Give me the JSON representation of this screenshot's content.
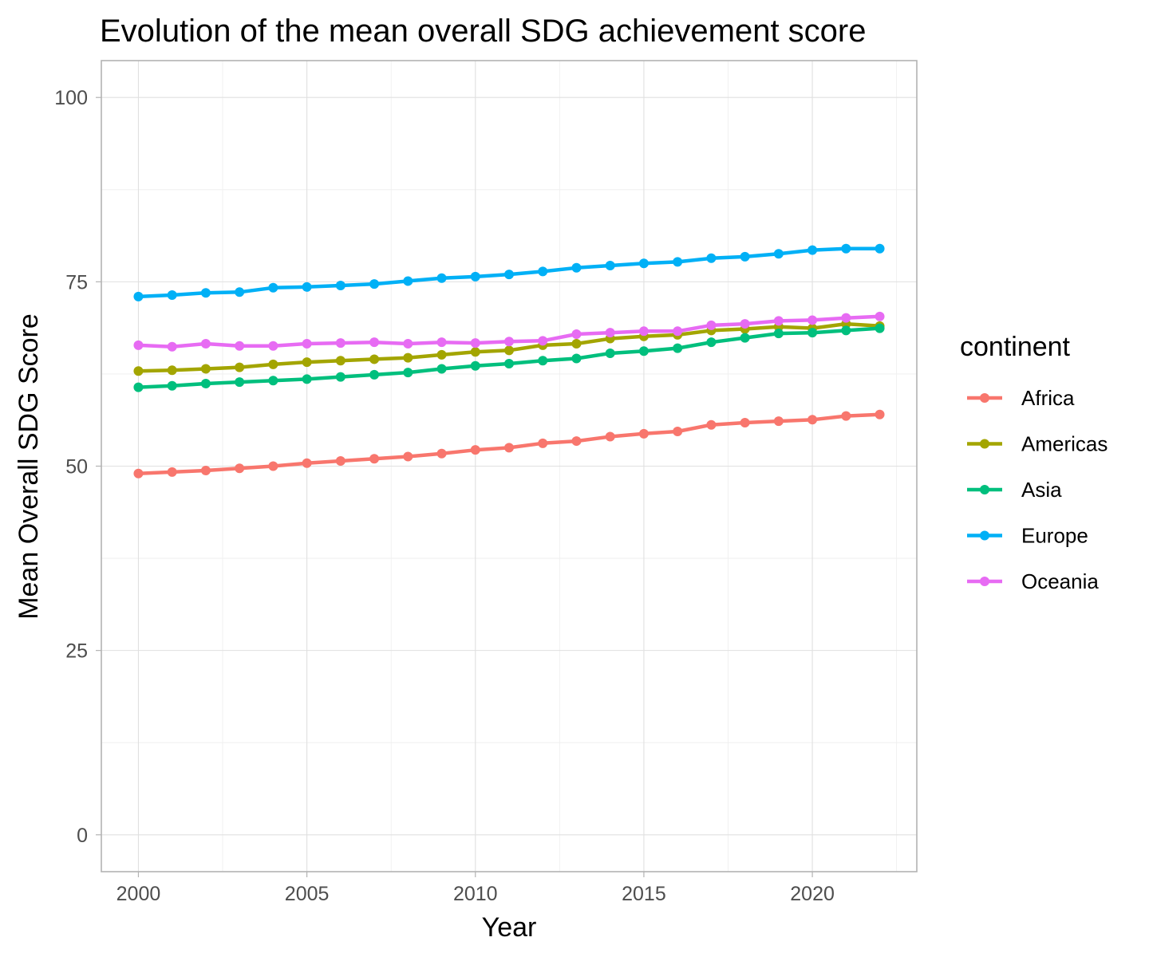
{
  "chart_data": {
    "type": "line",
    "title": "Evolution of the mean overall SDG achievement score",
    "xlabel": "Year",
    "ylabel": "Mean Overall SDG Score",
    "xlim": [
      1998.9,
      2023.1
    ],
    "ylim": [
      -5,
      105
    ],
    "x_ticks": [
      2000,
      2005,
      2010,
      2015,
      2020
    ],
    "y_ticks": [
      0,
      25,
      50,
      75,
      100
    ],
    "grid": true,
    "legend": {
      "title": "continent",
      "position": "right"
    },
    "x": [
      2000,
      2001,
      2002,
      2003,
      2004,
      2005,
      2006,
      2007,
      2008,
      2009,
      2010,
      2011,
      2012,
      2013,
      2014,
      2015,
      2016,
      2017,
      2018,
      2019,
      2020,
      2021,
      2022
    ],
    "series": [
      {
        "name": "Africa",
        "color": "#F8766D",
        "values": [
          49.0,
          49.2,
          49.4,
          49.7,
          50.0,
          50.4,
          50.7,
          51.0,
          51.3,
          51.7,
          52.2,
          52.5,
          53.1,
          53.4,
          54.0,
          54.4,
          54.7,
          55.6,
          55.9,
          56.1,
          56.3,
          56.8,
          57.0
        ]
      },
      {
        "name": "Americas",
        "color": "#A3A500",
        "values": [
          62.9,
          63.0,
          63.2,
          63.4,
          63.8,
          64.1,
          64.3,
          64.5,
          64.7,
          65.1,
          65.5,
          65.7,
          66.4,
          66.6,
          67.3,
          67.6,
          67.8,
          68.4,
          68.6,
          68.9,
          68.7,
          69.3,
          69.0
        ]
      },
      {
        "name": "Asia",
        "color": "#00BF7D",
        "values": [
          60.7,
          60.9,
          61.2,
          61.4,
          61.6,
          61.8,
          62.1,
          62.4,
          62.7,
          63.2,
          63.6,
          63.9,
          64.3,
          64.6,
          65.3,
          65.6,
          66.0,
          66.8,
          67.4,
          68.0,
          68.1,
          68.4,
          68.7
        ]
      },
      {
        "name": "Europe",
        "color": "#00B0F6",
        "values": [
          73.0,
          73.2,
          73.5,
          73.6,
          74.2,
          74.3,
          74.5,
          74.7,
          75.1,
          75.5,
          75.7,
          76.0,
          76.4,
          76.9,
          77.2,
          77.5,
          77.7,
          78.2,
          78.4,
          78.8,
          79.3,
          79.5,
          79.5
        ]
      },
      {
        "name": "Oceania",
        "color": "#E76BF3",
        "values": [
          66.4,
          66.2,
          66.6,
          66.3,
          66.3,
          66.6,
          66.7,
          66.8,
          66.6,
          66.8,
          66.7,
          66.9,
          67.0,
          67.9,
          68.1,
          68.3,
          68.3,
          69.1,
          69.3,
          69.7,
          69.8,
          70.1,
          70.3
        ]
      }
    ]
  }
}
